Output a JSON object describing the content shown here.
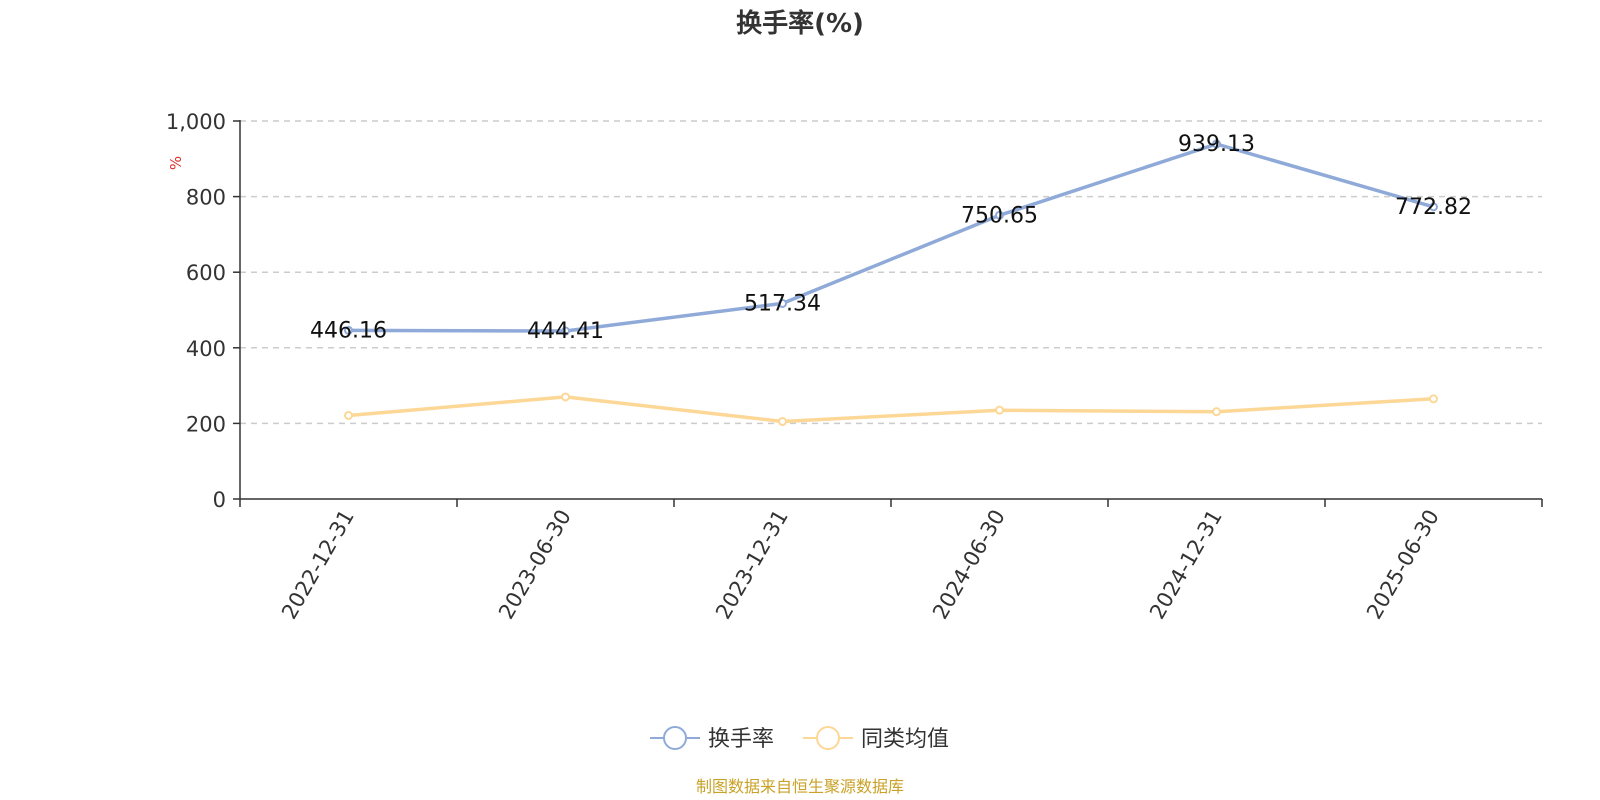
{
  "chart_data": {
    "type": "line",
    "title": "换手率(%)",
    "ylabel": "%",
    "xlabel": "",
    "categories": [
      "2022-12-31",
      "2023-06-30",
      "2023-12-31",
      "2024-06-30",
      "2024-12-31",
      "2025-06-30"
    ],
    "y_ticks": [
      "0",
      "200",
      "400",
      "600",
      "800",
      "1,000"
    ],
    "ylim": [
      0,
      1000
    ],
    "grid": true,
    "legend_position": "bottom-center",
    "series": [
      {
        "name": "换手率",
        "values": [
          446.16,
          444.41,
          517.34,
          750.65,
          939.13,
          772.82
        ],
        "labels": [
          "446.16",
          "444.41",
          "517.34",
          "750.65",
          "939.13",
          "772.82"
        ],
        "color": "#8faad8",
        "show_labels": true
      },
      {
        "name": "同类均值",
        "values": [
          221,
          270,
          205,
          235,
          231,
          265
        ],
        "color": "#fcd796",
        "show_labels": false
      }
    ],
    "source": "制图数据来自恒生聚源数据库"
  }
}
